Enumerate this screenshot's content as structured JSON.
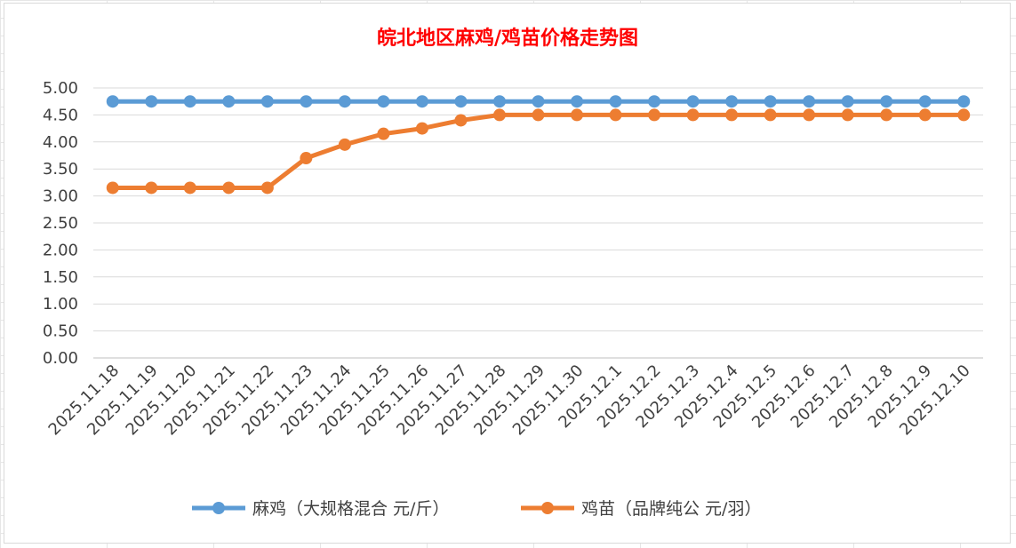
{
  "chart_data": {
    "type": "line",
    "title": "皖北地区麻鸡/鸡苗价格走势图",
    "categories": [
      "2025.11.18",
      "2025.11.19",
      "2025.11.20",
      "2025.11.21",
      "2025.11.22",
      "2025.11.23",
      "2025.11.24",
      "2025.11.25",
      "2025.11.26",
      "2025.11.27",
      "2025.11.28",
      "2025.11.29",
      "2025.11.30",
      "2025.12.1",
      "2025.12.2",
      "2025.12.3",
      "2025.12.4",
      "2025.12.5",
      "2025.12.6",
      "2025.12.7",
      "2025.12.8",
      "2025.12.9",
      "2025.12.10"
    ],
    "series": [
      {
        "name": "麻鸡（大规格混合 元/斤）",
        "color": "#5b9bd5",
        "values": [
          4.75,
          4.75,
          4.75,
          4.75,
          4.75,
          4.75,
          4.75,
          4.75,
          4.75,
          4.75,
          4.75,
          4.75,
          4.75,
          4.75,
          4.75,
          4.75,
          4.75,
          4.75,
          4.75,
          4.75,
          4.75,
          4.75,
          4.75
        ]
      },
      {
        "name": "鸡苗（品牌纯公 元/羽）",
        "color": "#ed7d31",
        "values": [
          3.15,
          3.15,
          3.15,
          3.15,
          3.15,
          3.7,
          3.95,
          4.15,
          4.25,
          4.4,
          4.5,
          4.5,
          4.5,
          4.5,
          4.5,
          4.5,
          4.5,
          4.5,
          4.5,
          4.5,
          4.5,
          4.5,
          4.5
        ]
      }
    ],
    "ylim": [
      0,
      5
    ],
    "yticks": [
      "0.00",
      "0.50",
      "1.00",
      "1.50",
      "2.00",
      "2.50",
      "3.00",
      "3.50",
      "4.00",
      "4.50",
      "5.00"
    ],
    "grid": true,
    "legend_position": "bottom"
  }
}
